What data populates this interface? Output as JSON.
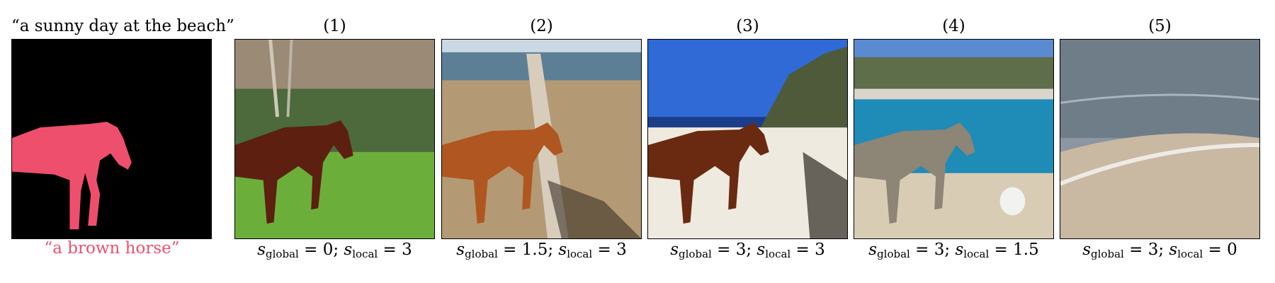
{
  "global_prompt": "“a sunny day at the beach”",
  "local_prompt": "“a brown horse”",
  "colors": {
    "mask_background": "#000000",
    "mask_region": "#ee4f6d",
    "local_prompt_text": "#ee4f6d"
  },
  "panels": [
    {
      "label": "(1)",
      "s_global": "0",
      "s_local": "3"
    },
    {
      "label": "(2)",
      "s_global": "1.5",
      "s_local": "3"
    },
    {
      "label": "(3)",
      "s_global": "3",
      "s_local": "3"
    },
    {
      "label": "(4)",
      "s_global": "3",
      "s_local": "1.5"
    },
    {
      "label": "(5)",
      "s_global": "3",
      "s_local": "0"
    }
  ],
  "param_symbols": {
    "s": "s",
    "global": "global",
    "local": "local",
    "eq": " = ",
    "sep": "; "
  }
}
